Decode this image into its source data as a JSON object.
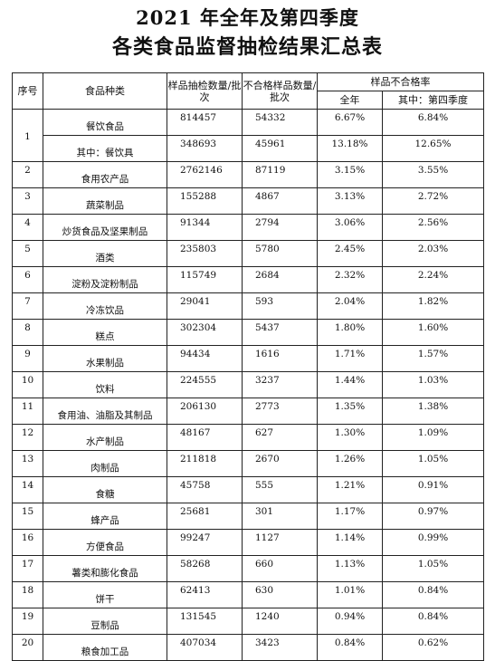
{
  "title": {
    "line1": "2021 年全年及第四季度",
    "line2": "各类食品监督抽检结果汇总表"
  },
  "headers": {
    "seq": "序号",
    "category": "食品种类",
    "sampled": "样品抽检数量/批次",
    "failed": "不合格样品数量/批次",
    "rate": "样品不合格率",
    "rate_year": "全年",
    "rate_q4": "其中：第四季度"
  },
  "rows": [
    {
      "seq": "1",
      "items": [
        {
          "name": "餐饮食品",
          "sampled": "814457",
          "failed": "54332",
          "rate_year": "6.67%",
          "rate_q4": "6.84%"
        },
        {
          "name": "其中：餐饮具",
          "sampled": "348693",
          "failed": "45961",
          "rate_year": "13.18%",
          "rate_q4": "12.65%"
        }
      ]
    },
    {
      "seq": "2",
      "items": [
        {
          "name": "食用农产品",
          "sampled": "2762146",
          "failed": "87119",
          "rate_year": "3.15%",
          "rate_q4": "3.55%"
        }
      ]
    },
    {
      "seq": "3",
      "items": [
        {
          "name": "蔬菜制品",
          "sampled": "155288",
          "failed": "4867",
          "rate_year": "3.13%",
          "rate_q4": "2.72%"
        }
      ]
    },
    {
      "seq": "4",
      "items": [
        {
          "name": "炒货食品及坚果制品",
          "sampled": "91344",
          "failed": "2794",
          "rate_year": "3.06%",
          "rate_q4": "2.56%"
        }
      ]
    },
    {
      "seq": "5",
      "items": [
        {
          "name": "酒类",
          "sampled": "235803",
          "failed": "5780",
          "rate_year": "2.45%",
          "rate_q4": "2.03%"
        }
      ]
    },
    {
      "seq": "6",
      "items": [
        {
          "name": "淀粉及淀粉制品",
          "sampled": "115749",
          "failed": "2684",
          "rate_year": "2.32%",
          "rate_q4": "2.24%"
        }
      ]
    },
    {
      "seq": "7",
      "items": [
        {
          "name": "冷冻饮品",
          "sampled": "29041",
          "failed": "593",
          "rate_year": "2.04%",
          "rate_q4": "1.82%"
        }
      ]
    },
    {
      "seq": "8",
      "items": [
        {
          "name": "糕点",
          "sampled": "302304",
          "failed": "5437",
          "rate_year": "1.80%",
          "rate_q4": "1.60%"
        }
      ]
    },
    {
      "seq": "9",
      "items": [
        {
          "name": "水果制品",
          "sampled": "94434",
          "failed": "1616",
          "rate_year": "1.71%",
          "rate_q4": "1.57%"
        }
      ]
    },
    {
      "seq": "10",
      "items": [
        {
          "name": "饮料",
          "sampled": "224555",
          "failed": "3237",
          "rate_year": "1.44%",
          "rate_q4": "1.03%"
        }
      ]
    },
    {
      "seq": "11",
      "items": [
        {
          "name": "食用油、油脂及其制品",
          "sampled": "206130",
          "failed": "2773",
          "rate_year": "1.35%",
          "rate_q4": "1.38%"
        }
      ]
    },
    {
      "seq": "12",
      "items": [
        {
          "name": "水产制品",
          "sampled": "48167",
          "failed": "627",
          "rate_year": "1.30%",
          "rate_q4": "1.09%"
        }
      ]
    },
    {
      "seq": "13",
      "items": [
        {
          "name": "肉制品",
          "sampled": "211818",
          "failed": "2670",
          "rate_year": "1.26%",
          "rate_q4": "1.05%"
        }
      ]
    },
    {
      "seq": "14",
      "items": [
        {
          "name": "食糖",
          "sampled": "45758",
          "failed": "555",
          "rate_year": "1.21%",
          "rate_q4": "0.91%"
        }
      ]
    },
    {
      "seq": "15",
      "items": [
        {
          "name": "蜂产品",
          "sampled": "25681",
          "failed": "301",
          "rate_year": "1.17%",
          "rate_q4": "0.97%"
        }
      ]
    },
    {
      "seq": "16",
      "items": [
        {
          "name": "方便食品",
          "sampled": "99247",
          "failed": "1127",
          "rate_year": "1.14%",
          "rate_q4": "0.99%"
        }
      ]
    },
    {
      "seq": "17",
      "items": [
        {
          "name": "薯类和膨化食品",
          "sampled": "58268",
          "failed": "660",
          "rate_year": "1.13%",
          "rate_q4": "1.05%"
        }
      ]
    },
    {
      "seq": "18",
      "items": [
        {
          "name": "饼干",
          "sampled": "62413",
          "failed": "630",
          "rate_year": "1.01%",
          "rate_q4": "0.84%"
        }
      ]
    },
    {
      "seq": "19",
      "items": [
        {
          "name": "豆制品",
          "sampled": "131545",
          "failed": "1240",
          "rate_year": "0.94%",
          "rate_q4": "0.84%"
        }
      ]
    },
    {
      "seq": "20",
      "items": [
        {
          "name": "粮食加工品",
          "sampled": "407034",
          "failed": "3423",
          "rate_year": "0.84%",
          "rate_q4": "0.62%"
        }
      ]
    }
  ]
}
